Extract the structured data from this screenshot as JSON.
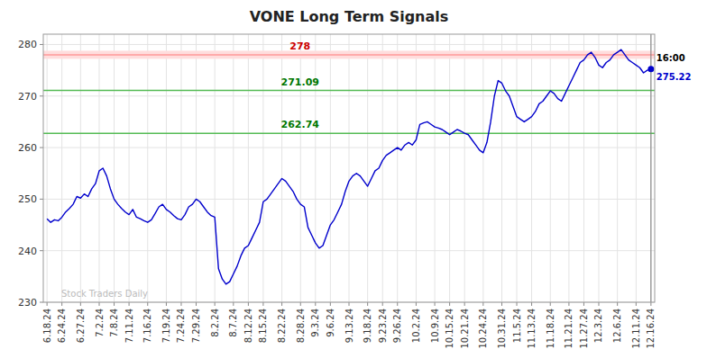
{
  "chart_data": {
    "type": "line",
    "title": "VONE Long Term Signals",
    "categories": [
      "6.18.24",
      null,
      null,
      null,
      "6.24.24",
      null,
      null,
      null,
      null,
      "6.27.24",
      null,
      null,
      null,
      null,
      "7.2.24",
      null,
      null,
      null,
      "7.8.24",
      null,
      null,
      null,
      "7.11.24",
      null,
      null,
      null,
      null,
      "7.16.24",
      null,
      null,
      null,
      null,
      "7.19.24",
      null,
      null,
      null,
      "7.24.24",
      null,
      null,
      null,
      "7.29.24",
      null,
      null,
      null,
      null,
      "8.2.24",
      null,
      null,
      null,
      null,
      "8.7.24",
      null,
      null,
      null,
      "8.12.24",
      null,
      null,
      null,
      "8.15.24",
      null,
      null,
      null,
      null,
      "8.22.24",
      null,
      null,
      null,
      null,
      "8.28.24",
      null,
      null,
      null,
      "9.3.24",
      null,
      null,
      null,
      "9.6.24",
      null,
      null,
      null,
      null,
      "9.13.24",
      null,
      null,
      null,
      null,
      "9.18.24",
      null,
      null,
      null,
      "9.23.24",
      null,
      null,
      null,
      "9.26.24",
      null,
      null,
      null,
      null,
      "10.2.24",
      null,
      null,
      null,
      null,
      "10.9.24",
      null,
      null,
      null,
      "10.15.24",
      null,
      null,
      null,
      "10.21.24",
      null,
      null,
      null,
      null,
      "10.24.24",
      null,
      null,
      null,
      null,
      "10.31.24",
      null,
      null,
      null,
      "11.5.24",
      null,
      null,
      null,
      "11.13.24",
      null,
      null,
      null,
      null,
      "11.18.24",
      null,
      null,
      null,
      null,
      "11.21.24",
      null,
      null,
      null,
      "11.27.24",
      null,
      null,
      null,
      "12.3.24",
      null,
      null,
      null,
      null,
      "12.6.24",
      null,
      null,
      null,
      null,
      "12.11.24",
      null,
      null,
      null,
      "12.16.24"
    ],
    "series": [
      {
        "color": "#0000cc",
        "values": [
          246.2,
          245.5,
          246.0,
          245.8,
          246.5,
          247.5,
          248.2,
          249.0,
          250.5,
          250.2,
          251.0,
          250.5,
          252.0,
          253.0,
          255.5,
          256.0,
          254.5,
          252.0,
          250.0,
          249.0,
          248.2,
          247.5,
          247.0,
          248.0,
          246.5,
          246.2,
          245.8,
          245.5,
          246.0,
          247.2,
          248.5,
          249.0,
          248.0,
          247.5,
          246.8,
          246.2,
          246.0,
          247.0,
          248.5,
          249.0,
          250.0,
          249.5,
          248.5,
          247.5,
          246.8,
          246.5,
          236.5,
          234.5,
          233.5,
          234.0,
          235.5,
          237.0,
          239.0,
          240.5,
          241.0,
          242.5,
          244.0,
          245.5,
          249.5,
          250.0,
          251.0,
          252.0,
          253.0,
          254.0,
          253.5,
          252.5,
          251.5,
          250.0,
          249.0,
          248.5,
          244.5,
          243.0,
          241.5,
          240.5,
          241.0,
          243.0,
          245.0,
          246.0,
          247.5,
          249.0,
          251.5,
          253.5,
          254.5,
          255.0,
          254.5,
          253.5,
          252.5,
          254.0,
          255.5,
          256.0,
          257.5,
          258.5,
          259.0,
          259.5,
          260.0,
          259.5,
          260.5,
          261.0,
          260.5,
          261.5,
          264.5,
          264.8,
          265.0,
          264.5,
          264.0,
          263.8,
          263.5,
          263.0,
          262.5,
          263.0,
          263.5,
          263.2,
          262.8,
          262.5,
          261.5,
          260.5,
          259.5,
          259.0,
          261.0,
          265.0,
          270.0,
          273.0,
          272.5,
          271.0,
          270.0,
          268.0,
          266.0,
          265.5,
          265.0,
          265.5,
          266.0,
          267.0,
          268.5,
          269.0,
          270.0,
          271.0,
          270.5,
          269.5,
          269.0,
          270.5,
          272.0,
          273.5,
          275.0,
          276.5,
          277.0,
          278.0,
          278.5,
          277.5,
          276.0,
          275.5,
          276.5,
          277.0,
          278.0,
          278.5,
          279.0,
          278.0,
          277.0,
          276.5,
          276.0,
          275.5,
          274.5,
          275.0,
          275.22
        ]
      }
    ],
    "reference_lines": [
      {
        "value": 278,
        "label": "278",
        "color": "#ff9999",
        "fill_color": "#ffdddd",
        "label_color": "#cc0000"
      },
      {
        "value": 271.09,
        "label": "271.09",
        "color": "#55bb55",
        "label_color": "#007700"
      },
      {
        "value": 262.74,
        "label": "262.74",
        "color": "#55bb55",
        "label_color": "#007700"
      }
    ],
    "annotations": [
      {
        "text": "16:00"
      },
      {
        "text": "275.22"
      }
    ],
    "watermark": "Stock Traders Daily",
    "ylim": [
      230,
      282
    ],
    "yticks": [
      230,
      240,
      250,
      260,
      270,
      280
    ],
    "grid": true
  }
}
